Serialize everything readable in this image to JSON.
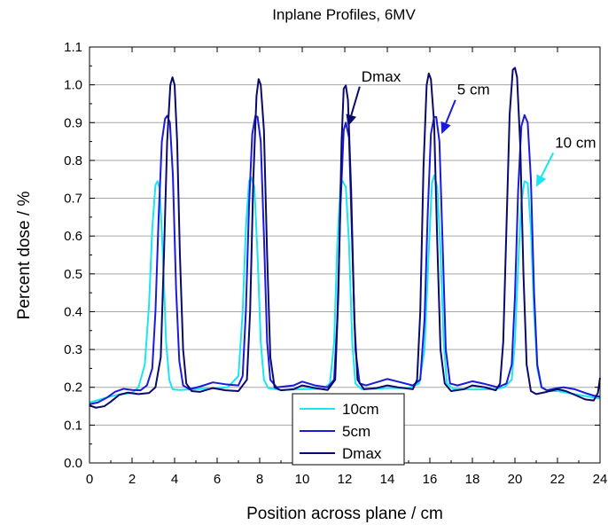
{
  "chart_data": {
    "type": "line",
    "title": "Inplane Profiles, 6MV",
    "xlabel": "Position across plane / cm",
    "ylabel": "Percent dose / %",
    "xlim": [
      0,
      24
    ],
    "ylim": [
      0.0,
      1.1
    ],
    "xticks": [
      0,
      2,
      4,
      6,
      8,
      10,
      12,
      14,
      16,
      18,
      20,
      22,
      24
    ],
    "yticks": [
      0.0,
      0.1,
      0.2,
      0.3,
      0.4,
      0.5,
      0.6,
      0.7,
      0.8,
      0.9,
      1.0,
      1.1
    ],
    "x_tick_labels": [
      "0",
      "2",
      "4",
      "6",
      "8",
      "10",
      "12",
      "14",
      "16",
      "18",
      "20",
      "22",
      "24"
    ],
    "y_tick_labels": [
      "0.0",
      "0.1",
      "0.2",
      "0.3",
      "0.4",
      "0.5",
      "0.6",
      "0.7",
      "0.8",
      "0.9",
      "1.0",
      "1.1"
    ],
    "grid": "horizontal",
    "legend_position": "bottom-center",
    "series": [
      {
        "name": "10cm",
        "color": "#19e6f0",
        "points": [
          [
            0.0,
            0.16
          ],
          [
            0.5,
            0.168
          ],
          [
            1.0,
            0.176
          ],
          [
            1.5,
            0.182
          ],
          [
            2.0,
            0.185
          ],
          [
            2.3,
            0.2
          ],
          [
            2.6,
            0.26
          ],
          [
            2.8,
            0.42
          ],
          [
            2.95,
            0.62
          ],
          [
            3.1,
            0.735
          ],
          [
            3.2,
            0.745
          ],
          [
            3.3,
            0.725
          ],
          [
            3.45,
            0.55
          ],
          [
            3.6,
            0.32
          ],
          [
            3.75,
            0.22
          ],
          [
            3.9,
            0.195
          ],
          [
            4.2,
            0.193
          ],
          [
            5.0,
            0.195
          ],
          [
            6.0,
            0.198
          ],
          [
            6.5,
            0.2
          ],
          [
            7.0,
            0.23
          ],
          [
            7.2,
            0.4
          ],
          [
            7.35,
            0.62
          ],
          [
            7.5,
            0.745
          ],
          [
            7.6,
            0.755
          ],
          [
            7.75,
            0.73
          ],
          [
            7.9,
            0.55
          ],
          [
            8.05,
            0.32
          ],
          [
            8.2,
            0.22
          ],
          [
            8.4,
            0.198
          ],
          [
            9.0,
            0.193
          ],
          [
            10.0,
            0.195
          ],
          [
            11.0,
            0.196
          ],
          [
            11.3,
            0.21
          ],
          [
            11.5,
            0.32
          ],
          [
            11.65,
            0.58
          ],
          [
            11.8,
            0.735
          ],
          [
            11.9,
            0.745
          ],
          [
            12.05,
            0.73
          ],
          [
            12.2,
            0.58
          ],
          [
            12.35,
            0.32
          ],
          [
            12.5,
            0.21
          ],
          [
            12.8,
            0.195
          ],
          [
            13.5,
            0.196
          ],
          [
            14.0,
            0.198
          ],
          [
            15.0,
            0.198
          ],
          [
            15.5,
            0.21
          ],
          [
            15.75,
            0.3
          ],
          [
            15.95,
            0.56
          ],
          [
            16.1,
            0.74
          ],
          [
            16.2,
            0.76
          ],
          [
            16.35,
            0.73
          ],
          [
            16.5,
            0.56
          ],
          [
            16.65,
            0.32
          ],
          [
            16.8,
            0.21
          ],
          [
            17.1,
            0.196
          ],
          [
            18.0,
            0.194
          ],
          [
            19.0,
            0.195
          ],
          [
            19.5,
            0.2
          ],
          [
            19.85,
            0.22
          ],
          [
            20.0,
            0.32
          ],
          [
            20.15,
            0.52
          ],
          [
            20.3,
            0.69
          ],
          [
            20.45,
            0.745
          ],
          [
            20.6,
            0.74
          ],
          [
            20.75,
            0.62
          ],
          [
            20.9,
            0.4
          ],
          [
            21.05,
            0.25
          ],
          [
            21.25,
            0.2
          ],
          [
            21.6,
            0.19
          ],
          [
            22.0,
            0.19
          ],
          [
            22.5,
            0.185
          ],
          [
            23.0,
            0.18
          ],
          [
            23.5,
            0.175
          ],
          [
            24.0,
            0.17
          ]
        ]
      },
      {
        "name": "5cm",
        "color": "#1a1adc",
        "points": [
          [
            0.0,
            0.155
          ],
          [
            0.4,
            0.16
          ],
          [
            0.8,
            0.172
          ],
          [
            1.2,
            0.188
          ],
          [
            1.6,
            0.196
          ],
          [
            2.0,
            0.193
          ],
          [
            2.4,
            0.192
          ],
          [
            2.7,
            0.205
          ],
          [
            2.95,
            0.25
          ],
          [
            3.1,
            0.4
          ],
          [
            3.25,
            0.65
          ],
          [
            3.4,
            0.85
          ],
          [
            3.55,
            0.91
          ],
          [
            3.65,
            0.918
          ],
          [
            3.78,
            0.9
          ],
          [
            3.92,
            0.76
          ],
          [
            4.07,
            0.46
          ],
          [
            4.22,
            0.27
          ],
          [
            4.4,
            0.205
          ],
          [
            4.7,
            0.195
          ],
          [
            5.2,
            0.202
          ],
          [
            5.8,
            0.213
          ],
          [
            6.4,
            0.208
          ],
          [
            7.0,
            0.205
          ],
          [
            7.2,
            0.23
          ],
          [
            7.35,
            0.4
          ],
          [
            7.5,
            0.68
          ],
          [
            7.65,
            0.87
          ],
          [
            7.8,
            0.918
          ],
          [
            7.9,
            0.915
          ],
          [
            8.05,
            0.85
          ],
          [
            8.2,
            0.6
          ],
          [
            8.35,
            0.32
          ],
          [
            8.5,
            0.22
          ],
          [
            8.8,
            0.2
          ],
          [
            9.6,
            0.205
          ],
          [
            10.0,
            0.215
          ],
          [
            10.6,
            0.205
          ],
          [
            11.2,
            0.2
          ],
          [
            11.5,
            0.22
          ],
          [
            11.65,
            0.38
          ],
          [
            11.8,
            0.68
          ],
          [
            11.95,
            0.88
          ],
          [
            12.05,
            0.9
          ],
          [
            12.2,
            0.86
          ],
          [
            12.35,
            0.58
          ],
          [
            12.5,
            0.3
          ],
          [
            12.7,
            0.21
          ],
          [
            13.0,
            0.205
          ],
          [
            13.6,
            0.215
          ],
          [
            14.0,
            0.222
          ],
          [
            14.5,
            0.215
          ],
          [
            15.2,
            0.205
          ],
          [
            15.55,
            0.22
          ],
          [
            15.75,
            0.38
          ],
          [
            15.9,
            0.66
          ],
          [
            16.05,
            0.87
          ],
          [
            16.2,
            0.915
          ],
          [
            16.3,
            0.915
          ],
          [
            16.45,
            0.85
          ],
          [
            16.6,
            0.58
          ],
          [
            16.75,
            0.3
          ],
          [
            16.95,
            0.21
          ],
          [
            17.3,
            0.205
          ],
          [
            18.0,
            0.216
          ],
          [
            18.5,
            0.21
          ],
          [
            19.2,
            0.2
          ],
          [
            19.6,
            0.21
          ],
          [
            19.85,
            0.26
          ],
          [
            20.0,
            0.44
          ],
          [
            20.15,
            0.72
          ],
          [
            20.3,
            0.89
          ],
          [
            20.45,
            0.92
          ],
          [
            20.6,
            0.9
          ],
          [
            20.75,
            0.75
          ],
          [
            20.9,
            0.45
          ],
          [
            21.05,
            0.26
          ],
          [
            21.25,
            0.2
          ],
          [
            21.5,
            0.192
          ],
          [
            22.0,
            0.198
          ],
          [
            22.3,
            0.2
          ],
          [
            22.8,
            0.195
          ],
          [
            23.3,
            0.185
          ],
          [
            23.7,
            0.178
          ],
          [
            24.0,
            0.175
          ]
        ]
      },
      {
        "name": "Dmax",
        "color": "#0a0a6a",
        "points": [
          [
            0.0,
            0.152
          ],
          [
            0.3,
            0.146
          ],
          [
            0.7,
            0.15
          ],
          [
            1.0,
            0.162
          ],
          [
            1.4,
            0.18
          ],
          [
            1.8,
            0.186
          ],
          [
            2.3,
            0.182
          ],
          [
            2.8,
            0.185
          ],
          [
            3.1,
            0.2
          ],
          [
            3.35,
            0.28
          ],
          [
            3.5,
            0.55
          ],
          [
            3.65,
            0.85
          ],
          [
            3.8,
            1.0
          ],
          [
            3.9,
            1.02
          ],
          [
            4.0,
            1.0
          ],
          [
            4.12,
            0.85
          ],
          [
            4.25,
            0.55
          ],
          [
            4.4,
            0.3
          ],
          [
            4.55,
            0.21
          ],
          [
            4.8,
            0.19
          ],
          [
            5.2,
            0.188
          ],
          [
            5.8,
            0.198
          ],
          [
            6.4,
            0.192
          ],
          [
            7.0,
            0.19
          ],
          [
            7.4,
            0.22
          ],
          [
            7.55,
            0.4
          ],
          [
            7.7,
            0.75
          ],
          [
            7.85,
            0.97
          ],
          [
            7.95,
            1.015
          ],
          [
            8.05,
            1.0
          ],
          [
            8.2,
            0.88
          ],
          [
            8.35,
            0.55
          ],
          [
            8.5,
            0.28
          ],
          [
            8.7,
            0.2
          ],
          [
            9.0,
            0.192
          ],
          [
            9.6,
            0.195
          ],
          [
            10.0,
            0.205
          ],
          [
            10.6,
            0.198
          ],
          [
            11.2,
            0.193
          ],
          [
            11.55,
            0.22
          ],
          [
            11.7,
            0.45
          ],
          [
            11.85,
            0.85
          ],
          [
            11.95,
            0.99
          ],
          [
            12.05,
            0.998
          ],
          [
            12.15,
            0.96
          ],
          [
            12.3,
            0.72
          ],
          [
            12.45,
            0.38
          ],
          [
            12.6,
            0.22
          ],
          [
            12.9,
            0.195
          ],
          [
            13.5,
            0.198
          ],
          [
            14.0,
            0.205
          ],
          [
            14.5,
            0.2
          ],
          [
            15.2,
            0.195
          ],
          [
            15.4,
            0.22
          ],
          [
            15.55,
            0.4
          ],
          [
            15.7,
            0.78
          ],
          [
            15.85,
            1.0
          ],
          [
            15.95,
            1.03
          ],
          [
            16.05,
            1.015
          ],
          [
            16.2,
            0.9
          ],
          [
            16.35,
            0.58
          ],
          [
            16.5,
            0.3
          ],
          [
            16.7,
            0.21
          ],
          [
            17.0,
            0.19
          ],
          [
            17.6,
            0.195
          ],
          [
            18.0,
            0.205
          ],
          [
            18.6,
            0.2
          ],
          [
            19.1,
            0.192
          ],
          [
            19.3,
            0.21
          ],
          [
            19.45,
            0.32
          ],
          [
            19.6,
            0.62
          ],
          [
            19.75,
            0.92
          ],
          [
            19.9,
            1.04
          ],
          [
            20.0,
            1.045
          ],
          [
            20.1,
            1.02
          ],
          [
            20.25,
            0.84
          ],
          [
            20.4,
            0.5
          ],
          [
            20.55,
            0.26
          ],
          [
            20.75,
            0.19
          ],
          [
            21.0,
            0.182
          ],
          [
            21.5,
            0.188
          ],
          [
            22.0,
            0.195
          ],
          [
            22.4,
            0.19
          ],
          [
            22.9,
            0.178
          ],
          [
            23.3,
            0.168
          ],
          [
            23.7,
            0.165
          ],
          [
            23.9,
            0.185
          ],
          [
            24.0,
            0.225
          ]
        ]
      }
    ],
    "annotations": [
      {
        "text": "Dmax",
        "color": "#0a0a6a",
        "arrow_from": [
          12.7,
          0.995
        ],
        "arrow_to": [
          12.15,
          0.89
        ]
      },
      {
        "text": "5 cm",
        "color": "#1a1adc",
        "arrow_from": [
          17.2,
          0.96
        ],
        "arrow_to": [
          16.55,
          0.87
        ]
      },
      {
        "text": "10 cm",
        "color": "#19e6f0",
        "arrow_from": [
          21.8,
          0.82
        ],
        "arrow_to": [
          21.0,
          0.73
        ]
      }
    ]
  }
}
